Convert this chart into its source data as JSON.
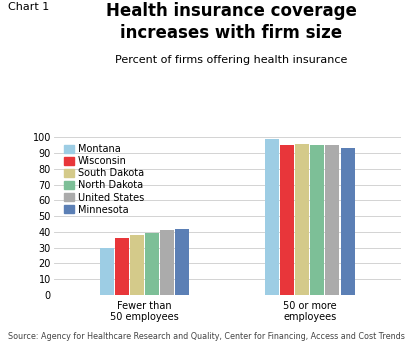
{
  "title": "Health insurance coverage\nincreases with firm size",
  "subtitle": "Percent of firms offering health insurance",
  "chart_label": "Chart 1",
  "source_text": "Source: Agency for Healthcare Research and Quality, Center for Financing, Access and Cost Trends",
  "categories": [
    "Fewer than\n50 employees",
    "50 or more\nemployees"
  ],
  "series": [
    {
      "label": "Montana",
      "color": "#9dcde4",
      "values": [
        30,
        99
      ]
    },
    {
      "label": "Wisconsin",
      "color": "#e8363a",
      "values": [
        36,
        95
      ]
    },
    {
      "label": "South Dakota",
      "color": "#d4ca8a",
      "values": [
        38,
        96
      ]
    },
    {
      "label": "North Dakota",
      "color": "#7dbf97",
      "values": [
        39,
        95
      ]
    },
    {
      "label": "United States",
      "color": "#ababab",
      "values": [
        41,
        95
      ]
    },
    {
      "label": "Minnesota",
      "color": "#5b7fb5",
      "values": [
        42,
        93
      ]
    }
  ],
  "ylim": [
    0,
    100
  ],
  "yticks": [
    0,
    10,
    20,
    30,
    40,
    50,
    60,
    70,
    80,
    90,
    100
  ],
  "background_color": "#ffffff",
  "grid_color": "#cccccc",
  "title_fontsize": 12,
  "subtitle_fontsize": 8,
  "legend_fontsize": 7,
  "tick_fontsize": 7,
  "source_fontsize": 5.8,
  "chart_label_fontsize": 8
}
